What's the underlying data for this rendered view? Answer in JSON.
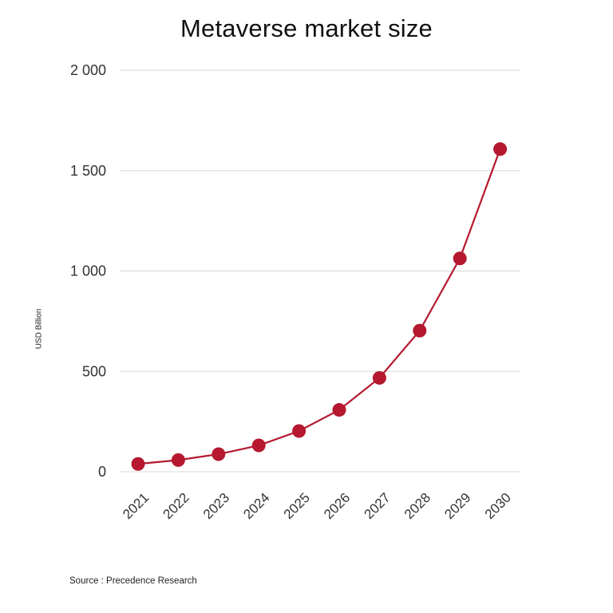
{
  "chart_data": {
    "type": "line",
    "title": "Metaverse market size",
    "xlabel": "",
    "ylabel": "USD Billion",
    "x": [
      "2021",
      "2022",
      "2023",
      "2024",
      "2025",
      "2026",
      "2027",
      "2028",
      "2029",
      "2030"
    ],
    "series": [
      {
        "values": [
          38.85,
          58.26,
          87.38,
          131.06,
          202.8,
          307.94,
          467.38,
          702.85,
          1062.5,
          1607.12
        ]
      }
    ],
    "ylim": [
      0,
      2000
    ],
    "yticks": [
      0,
      500,
      1000,
      1500,
      2000
    ],
    "ytick_labels": [
      "0",
      "500",
      "1 000",
      "1 500",
      "2 000"
    ],
    "grid": "horizontal",
    "legend": "none",
    "colors": {
      "line": "#b5182f",
      "marker": "#b5182f",
      "grid": "#d9d9d9"
    }
  },
  "source": "Source : Precedence Research"
}
